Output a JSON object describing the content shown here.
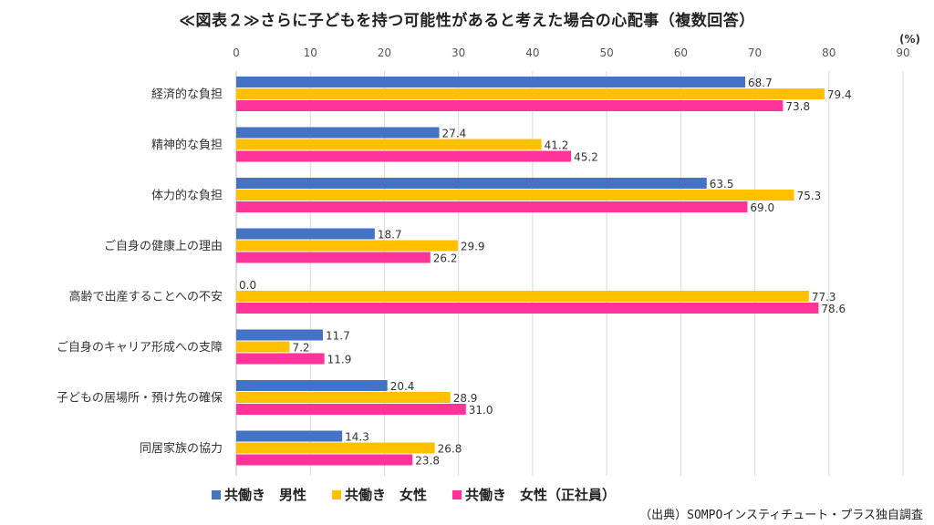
{
  "title": "≪図表２≫さらに子どもを持つ可能性があると考えた場合の心配事（複数回答）",
  "unit": "(%)",
  "source": "（出典）SOMPOインスティチュート・プラス独自調査",
  "colors": {
    "male": "#4472C4",
    "female": "#FFC000",
    "female_regular": "#FF3399"
  },
  "chart_data": {
    "type": "bar",
    "orientation": "horizontal",
    "title": "≪図表２≫さらに子どもを持つ可能性があると考えた場合の心配事（複数回答）",
    "xlim": [
      0,
      90
    ],
    "ticks": [
      0,
      10,
      20,
      30,
      40,
      50,
      60,
      70,
      80,
      90
    ],
    "grid": true,
    "legend_position": "bottom",
    "categories": [
      "経済的な負担",
      "精神的な負担",
      "体力的な負担",
      "ご自身の健康上の理由",
      "高齢で出産することへの不安",
      "ご自身のキャリア形成への支障",
      "子どもの居場所・預け先の確保",
      "同居家族の協力"
    ],
    "series": [
      {
        "name": "共働き　男性",
        "color": "#4472C4",
        "values": [
          68.7,
          27.4,
          63.5,
          18.7,
          0.0,
          11.7,
          20.4,
          14.3
        ]
      },
      {
        "name": "共働き　女性",
        "color": "#FFC000",
        "values": [
          79.4,
          41.2,
          75.3,
          29.9,
          77.3,
          7.2,
          28.9,
          26.8
        ]
      },
      {
        "name": "共働き　女性（正社員）",
        "color": "#FF3399",
        "values": [
          73.8,
          45.2,
          69.0,
          26.2,
          78.6,
          11.9,
          31.0,
          23.8
        ]
      }
    ]
  }
}
